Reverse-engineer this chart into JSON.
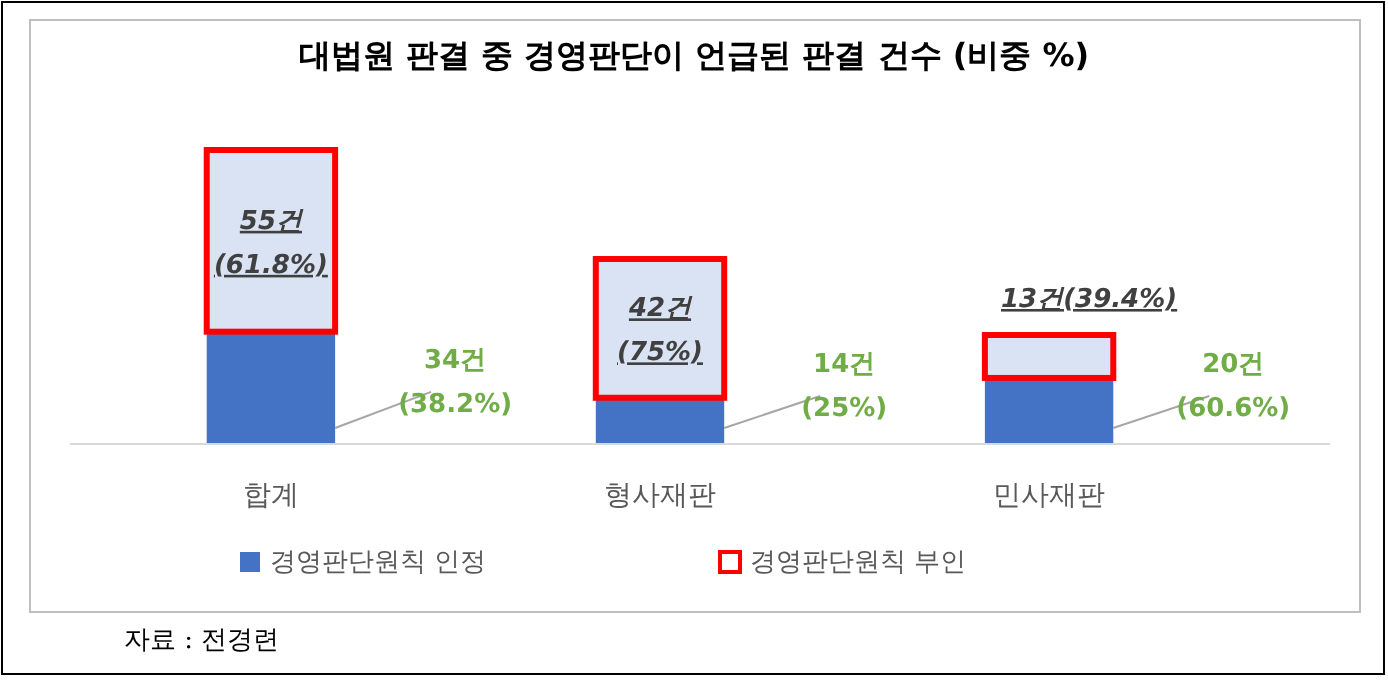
{
  "chart_data": {
    "type": "bar",
    "title": "대법원 판결 중 경영판단이 언급된 판결 건수 (비중 %)",
    "categories": [
      "합계",
      "형사재판",
      "민사재판"
    ],
    "stacked": true,
    "legend": "bottom",
    "series": [
      {
        "name": "경영판단원칙 인정",
        "color": "#4472c4",
        "values": [
          34,
          14,
          20
        ],
        "value_labels": [
          "34건 (38.2%)",
          "14건 (25%)",
          "20건 (60.6%)"
        ]
      },
      {
        "name": "경영판단원칙 부인",
        "color": "#ff0000",
        "values": [
          55,
          42,
          13
        ],
        "value_labels": [
          "55건 (61.8%)",
          "42건 (75%)",
          "13건(39.4%)"
        ]
      }
    ],
    "annotations": [
      "자료 : 전경련"
    ]
  }
}
